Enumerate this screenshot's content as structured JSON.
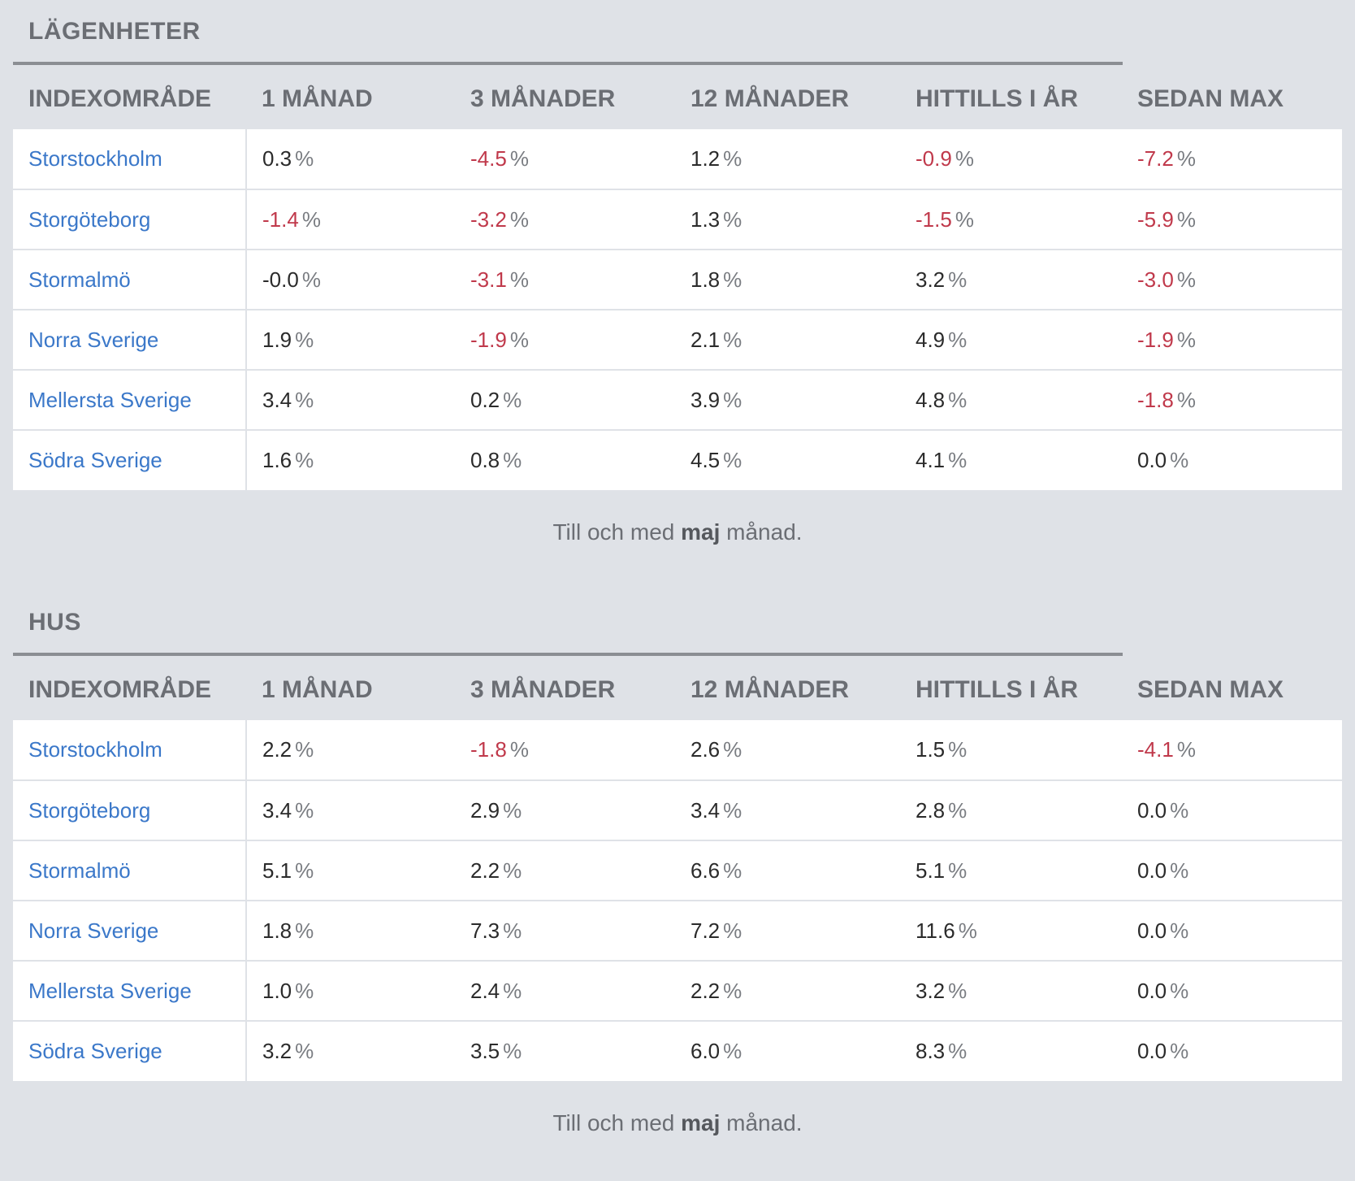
{
  "sections": [
    {
      "title": "LÄGENHETER",
      "headers": [
        "INDEXOMRÅDE",
        "1 MÅNAD",
        "3 MÅNADER",
        "12 MÅNADER",
        "HITTILLS I ÅR",
        "SEDAN MAX"
      ],
      "unit": "%",
      "rows": [
        {
          "area": "Storstockholm",
          "values": [
            "0.3",
            "-4.5",
            "1.2",
            "-0.9",
            "-7.2"
          ]
        },
        {
          "area": "Storgöteborg",
          "values": [
            "-1.4",
            "-3.2",
            "1.3",
            "-1.5",
            "-5.9"
          ]
        },
        {
          "area": "Stormalmö",
          "values": [
            "-0.0",
            "-3.1",
            "1.8",
            "3.2",
            "-3.0"
          ]
        },
        {
          "area": "Norra Sverige",
          "values": [
            "1.9",
            "-1.9",
            "2.1",
            "4.9",
            "-1.9"
          ]
        },
        {
          "area": "Mellersta Sverige",
          "values": [
            "3.4",
            "0.2",
            "3.9",
            "4.8",
            "-1.8"
          ]
        },
        {
          "area": "Södra Sverige",
          "values": [
            "1.6",
            "0.8",
            "4.5",
            "4.1",
            "0.0"
          ]
        }
      ],
      "footnote": {
        "prefix": "Till och med ",
        "month": "maj",
        "suffix": " månad."
      }
    },
    {
      "title": "HUS",
      "headers": [
        "INDEXOMRÅDE",
        "1 MÅNAD",
        "3 MÅNADER",
        "12 MÅNADER",
        "HITTILLS I ÅR",
        "SEDAN MAX"
      ],
      "unit": "%",
      "rows": [
        {
          "area": "Storstockholm",
          "values": [
            "2.2",
            "-1.8",
            "2.6",
            "1.5",
            "-4.1"
          ]
        },
        {
          "area": "Storgöteborg",
          "values": [
            "3.4",
            "2.9",
            "3.4",
            "2.8",
            "0.0"
          ]
        },
        {
          "area": "Stormalmö",
          "values": [
            "5.1",
            "2.2",
            "6.6",
            "5.1",
            "0.0"
          ]
        },
        {
          "area": "Norra Sverige",
          "values": [
            "1.8",
            "7.3",
            "7.2",
            "11.6",
            "0.0"
          ]
        },
        {
          "area": "Mellersta Sverige",
          "values": [
            "1.0",
            "2.4",
            "2.2",
            "3.2",
            "0.0"
          ]
        },
        {
          "area": "Södra Sverige",
          "values": [
            "3.2",
            "3.5",
            "6.0",
            "8.3",
            "0.0"
          ]
        }
      ],
      "footnote": {
        "prefix": "Till och med ",
        "month": "maj",
        "suffix": " månad."
      }
    }
  ],
  "colors": {
    "background": "#dfe2e7",
    "link": "#3b78c9",
    "negative": "#c0394b",
    "header_text": "#6b6e74"
  }
}
